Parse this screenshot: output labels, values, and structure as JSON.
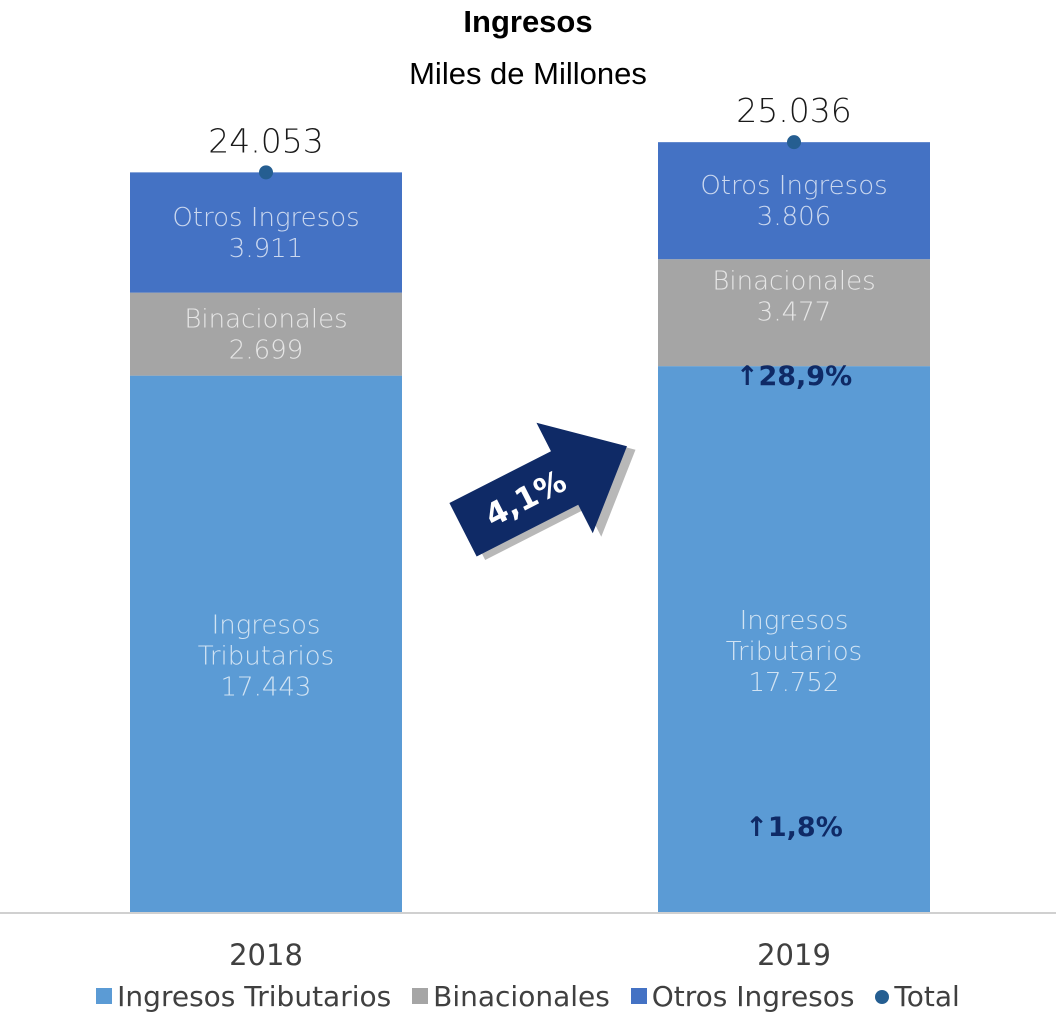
{
  "chart_data": {
    "type": "bar",
    "stacked": true,
    "title": "Ingresos",
    "subtitle": "Miles de Millones",
    "categories": [
      "2018",
      "2019"
    ],
    "series": [
      {
        "name": "Ingresos Tributarios",
        "label": [
          "Ingresos",
          "Tributarios"
        ],
        "values": [
          17443,
          17752
        ],
        "value_labels": [
          "17.443",
          "17.752"
        ],
        "color": "#5b9bd5"
      },
      {
        "name": "Binacionales",
        "label": [
          "Binacionales"
        ],
        "values": [
          2699,
          3477
        ],
        "value_labels": [
          "2.699",
          "3.477"
        ],
        "color": "#a5a5a5"
      },
      {
        "name": "Otros Ingresos",
        "label": [
          "Otros Ingresos"
        ],
        "values": [
          3911,
          3806
        ],
        "value_labels": [
          "3.911",
          "3.806"
        ],
        "color": "#4472c4"
      }
    ],
    "total": {
      "name": "Total",
      "values": [
        24053,
        25036
      ],
      "value_labels": [
        "24.053",
        "25.036"
      ],
      "color": "#255e91"
    },
    "annotations": {
      "total_growth": "4,1%",
      "binacionales_growth": "28,9%",
      "tributarios_growth": "1,8%"
    },
    "legend_position": "bottom",
    "grid": false
  }
}
